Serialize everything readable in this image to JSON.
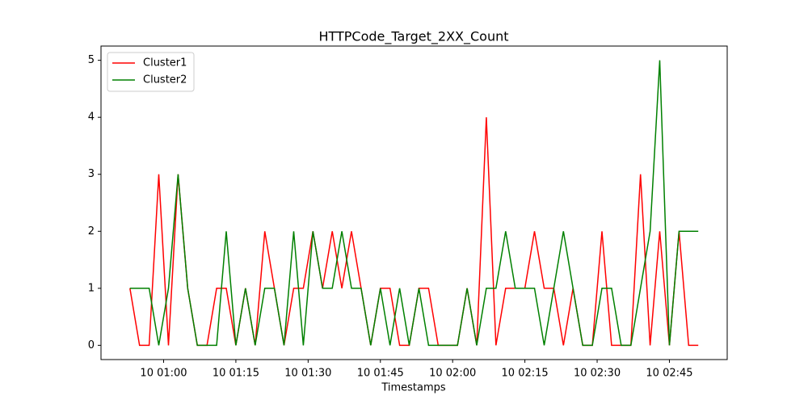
{
  "chart_data": {
    "type": "line",
    "title": "HTTPCode_Target_2XX_Count",
    "x_label": "Timestamps",
    "x": [
      "10 00:53",
      "10 00:55",
      "10 00:57",
      "10 00:59",
      "10 01:01",
      "10 01:03",
      "10 01:05",
      "10 01:07",
      "10 01:09",
      "10 01:11",
      "10 01:13",
      "10 01:15",
      "10 01:17",
      "10 01:19",
      "10 01:21",
      "10 01:23",
      "10 01:25",
      "10 01:27",
      "10 01:29",
      "10 01:31",
      "10 01:33",
      "10 01:35",
      "10 01:37",
      "10 01:39",
      "10 01:41",
      "10 01:43",
      "10 01:45",
      "10 01:47",
      "10 01:49",
      "10 01:51",
      "10 01:53",
      "10 01:55",
      "10 01:57",
      "10 01:59",
      "10 02:01",
      "10 02:03",
      "10 02:05",
      "10 02:07",
      "10 02:09",
      "10 02:11",
      "10 02:13",
      "10 02:15",
      "10 02:17",
      "10 02:19",
      "10 02:21",
      "10 02:23",
      "10 02:25",
      "10 02:27",
      "10 02:29",
      "10 02:31",
      "10 02:33",
      "10 02:35",
      "10 02:37",
      "10 02:39",
      "10 02:41",
      "10 02:43",
      "10 02:45",
      "10 02:47",
      "10 02:49",
      "10 02:51"
    ],
    "series": [
      {
        "name": "Cluster1",
        "color": "#ff0000",
        "values": [
          1,
          0,
          0,
          3,
          0,
          3,
          1,
          0,
          0,
          1,
          1,
          0,
          1,
          0,
          2,
          1,
          0,
          1,
          1,
          2,
          1,
          2,
          1,
          2,
          1,
          0,
          1,
          1,
          0,
          0,
          1,
          1,
          0,
          0,
          0,
          1,
          0,
          4,
          0,
          1,
          1,
          1,
          2,
          1,
          1,
          0,
          1,
          0,
          0,
          2,
          0,
          0,
          0,
          3,
          0,
          2,
          0,
          2,
          0,
          0
        ]
      },
      {
        "name": "Cluster2",
        "color": "#008000",
        "values": [
          1,
          1,
          1,
          0,
          1,
          3,
          1,
          0,
          0,
          0,
          2,
          0,
          1,
          0,
          1,
          1,
          0,
          2,
          0,
          2,
          1,
          1,
          2,
          1,
          1,
          0,
          1,
          0,
          1,
          0,
          1,
          0,
          0,
          0,
          0,
          1,
          0,
          1,
          1,
          2,
          1,
          1,
          1,
          0,
          1,
          2,
          1,
          0,
          0,
          1,
          1,
          0,
          0,
          1,
          2,
          5,
          0,
          2,
          2,
          2
        ]
      }
    ],
    "xlim": [
      "10 00:47",
      "10 02:57"
    ],
    "xticks": [
      "10 01:00",
      "10 01:15",
      "10 01:30",
      "10 01:45",
      "10 02:00",
      "10 02:15",
      "10 02:30",
      "10 02:45"
    ],
    "ylim": [
      -0.25,
      5.25
    ],
    "yticks": [
      0,
      1,
      2,
      3,
      4,
      5
    ],
    "grid": false,
    "legend": "upper left"
  }
}
